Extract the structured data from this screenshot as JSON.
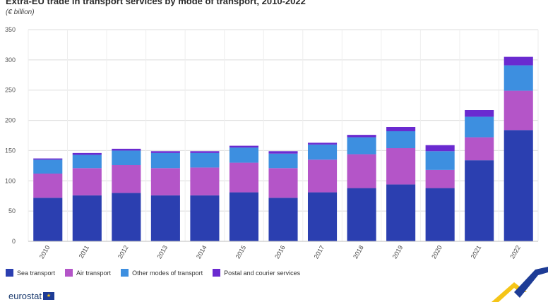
{
  "chart_data": {
    "type": "bar",
    "stacked": true,
    "title": "Extra-EU trade in transport services by mode of transport, 2010-2022",
    "subtitle": "(€ billion)",
    "xlabel": "",
    "ylabel": "",
    "categories": [
      "2010",
      "2011",
      "2012",
      "2013",
      "2014",
      "2015",
      "2016",
      "2017",
      "2018",
      "2019",
      "2020",
      "2021",
      "2022"
    ],
    "ylim": [
      0,
      350
    ],
    "yticks": [
      0,
      50,
      100,
      150,
      200,
      250,
      300,
      350
    ],
    "grid": true,
    "legend_position": "bottom-left",
    "series": [
      {
        "name": "Sea transport",
        "color": "#2b3fb0",
        "values": [
          72,
          76,
          80,
          76,
          76,
          81,
          72,
          81,
          88,
          94,
          88,
          134,
          184
        ]
      },
      {
        "name": "Air transport",
        "color": "#b455c8",
        "values": [
          40,
          45,
          46,
          45,
          46,
          49,
          49,
          54,
          56,
          60,
          30,
          38,
          65
        ]
      },
      {
        "name": "Other modes of transport",
        "color": "#3d8fe0",
        "values": [
          23,
          22,
          24,
          25,
          24,
          25,
          24,
          25,
          28,
          28,
          31,
          34,
          42
        ]
      },
      {
        "name": "Postal and courier services",
        "color": "#6a2ad0",
        "values": [
          2,
          3,
          3,
          3,
          3,
          3,
          4,
          3,
          4,
          7,
          10,
          11,
          14
        ]
      }
    ]
  },
  "brand": {
    "name": "eurostat",
    "flag_glyph": "★"
  }
}
